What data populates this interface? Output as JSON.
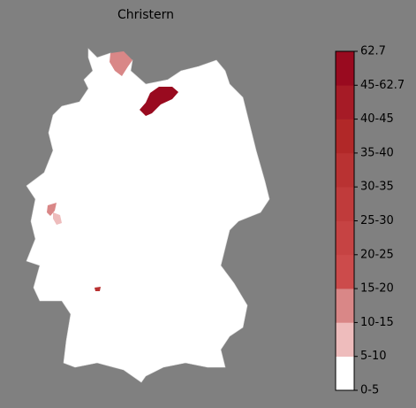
{
  "title": "Christern",
  "colorbar": {
    "labels": [
      "0-5",
      "5-10",
      "10-15",
      "15-20",
      "20-25",
      "25-30",
      "30-35",
      "35-40",
      "40-45",
      "45-62.7",
      "62.7"
    ],
    "colors": [
      "#ffffff",
      "#eebcbc",
      "#d98787",
      "#cc4b4b",
      "#c64343",
      "#c03b3b",
      "#b93232",
      "#b12828",
      "#a61b26",
      "#990a1f"
    ]
  }
}
